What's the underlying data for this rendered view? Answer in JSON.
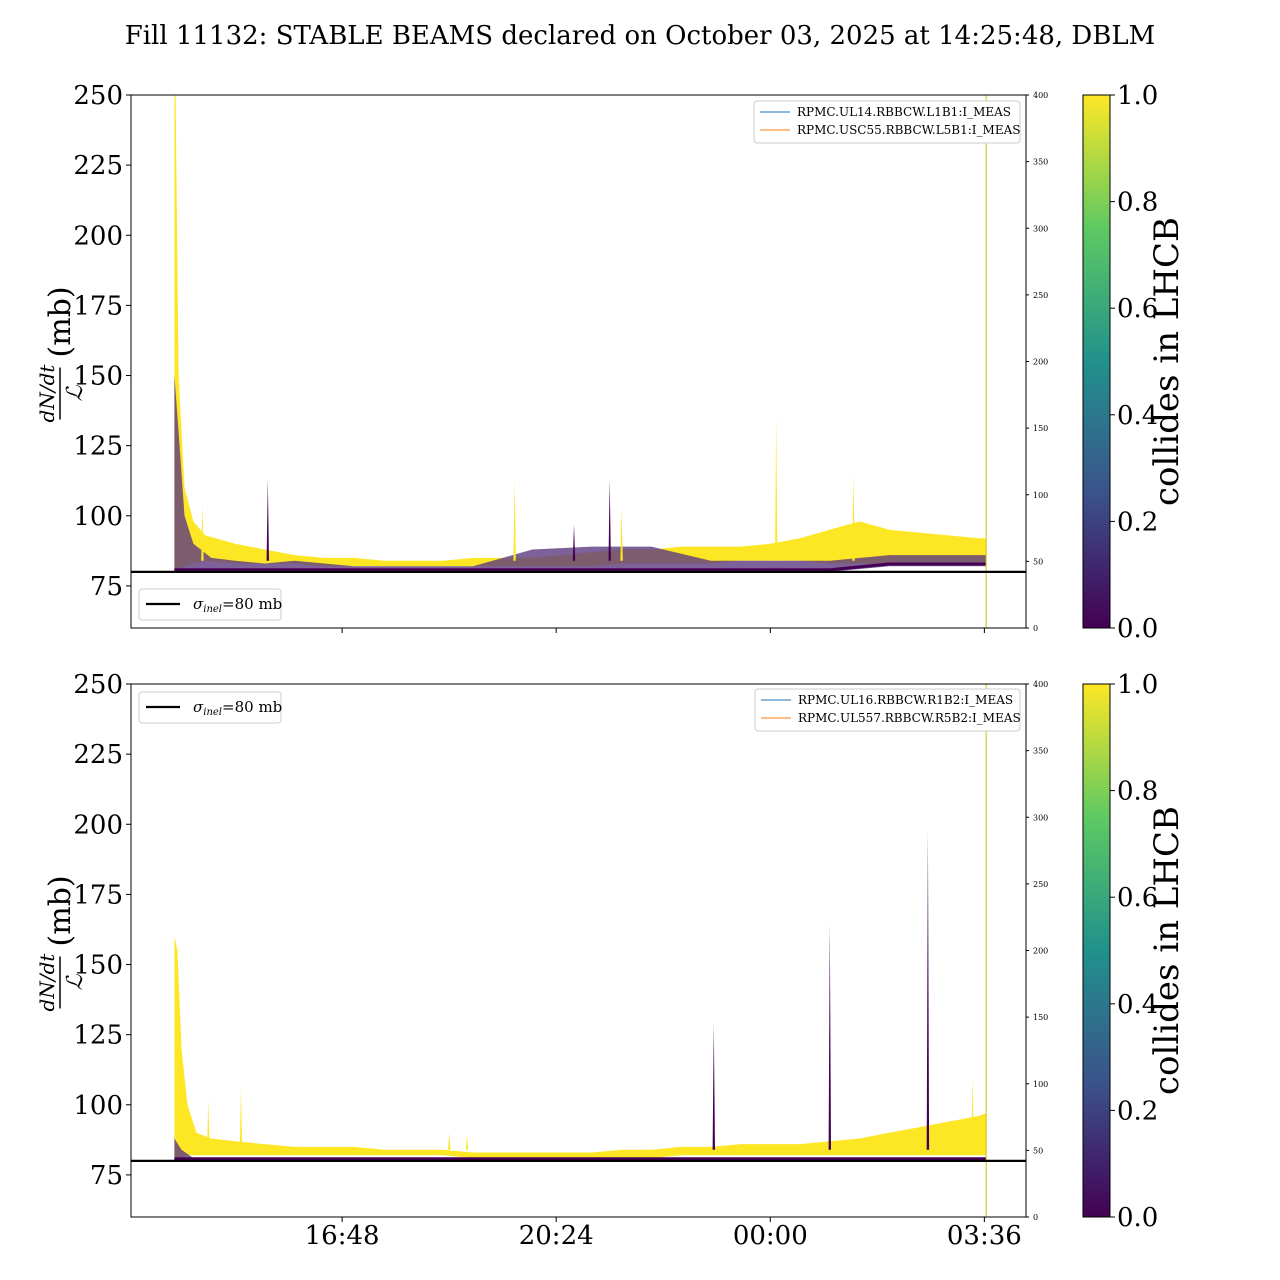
{
  "title": "Fill 11132: STABLE BEAMS declared on October 03, 2025 at 14:25:48, DBLM",
  "colors": {
    "yellow": "#fde725",
    "dark_purple": "#440154",
    "purple": "#5c3a80",
    "reference_line": "#000000",
    "blue_line": "#1f77b4",
    "orange_line": "#ff7f0e",
    "viridis": [
      "#440154",
      "#3b528b",
      "#21918c",
      "#5ec962",
      "#fde725"
    ]
  },
  "chart_data": [
    {
      "type": "area",
      "panel": "top",
      "ylabel_num": "dN/dt",
      "ylabel_den": "ℒ",
      "ylabel_unit": "(mb)",
      "ylim": [
        60,
        250
      ],
      "yticks": [
        "75",
        "100",
        "125",
        "150",
        "175",
        "200",
        "225",
        "250"
      ],
      "right_ylim": [
        0,
        400
      ],
      "right_yticks": [
        "0",
        "50",
        "100",
        "150",
        "200",
        "250",
        "300",
        "350",
        "400"
      ],
      "xlim_hours": [
        13.25,
        4.3
      ],
      "xticks": [
        "16:48",
        "20:24",
        "00:00",
        "03:36"
      ],
      "reference_line": {
        "label": "σinel=80 mb",
        "sym": "σ",
        "sub": "inel",
        "rest": "=80 mb",
        "value": 80
      },
      "legend_series": [
        {
          "name": "RPMC.UL14.RBBCW.L1B1:I_MEAS",
          "color": "#1f77b4"
        },
        {
          "name": "RPMC.USC55.RBBCW.L5B1:I_MEAS",
          "color": "#ff7f0e"
        }
      ],
      "colliding_envelope": {
        "x": [
          13.98,
          14.0,
          14.05,
          14.15,
          14.3,
          14.5,
          15.0,
          15.5,
          16.0,
          16.5,
          17.0,
          17.5,
          18.0,
          18.5,
          19.0,
          19.5,
          20.0,
          20.5,
          21.0,
          21.5,
          22.0,
          22.5,
          23.0,
          23.5,
          24.0,
          24.5,
          25.0,
          25.5,
          26.0,
          26.5,
          27.0,
          27.5,
          27.63
        ],
        "upper": [
          250,
          250,
          150,
          110,
          98,
          93,
          90,
          88,
          86,
          85,
          85,
          84,
          84,
          84,
          85,
          85,
          85,
          86,
          87,
          88,
          88,
          89,
          89,
          89,
          90,
          92,
          95,
          98,
          95,
          94,
          93,
          92,
          92
        ],
        "lower": [
          80,
          80,
          81,
          82,
          83,
          84,
          83,
          83,
          83,
          82,
          82,
          82,
          82,
          82,
          82,
          82,
          82,
          82,
          82,
          83,
          83,
          83,
          83,
          84,
          84,
          84,
          83,
          83,
          83,
          83,
          83,
          83,
          83
        ]
      },
      "non_colliding_envelope": {
        "x": [
          13.98,
          14.05,
          14.15,
          14.3,
          14.6,
          15.0,
          15.5,
          16.0,
          16.5,
          17.0,
          18.0,
          19.0,
          20.0,
          21.0,
          22.0,
          23.0,
          24.0,
          25.0,
          26.0,
          27.0,
          27.63
        ],
        "upper": [
          150,
          130,
          100,
          90,
          85,
          84,
          83,
          84,
          83,
          82,
          82,
          82,
          88,
          89,
          89,
          84,
          84,
          84,
          86,
          86,
          86
        ],
        "lower": [
          80,
          80,
          80,
          80,
          80,
          80,
          80,
          80,
          80,
          80,
          80,
          80,
          80,
          80,
          80,
          80,
          80,
          80,
          82,
          82,
          82
        ]
      },
      "spikes": [
        {
          "x": 14.45,
          "y": 104,
          "group": "colliding"
        },
        {
          "x": 15.55,
          "y": 113,
          "group": "non_colliding"
        },
        {
          "x": 19.7,
          "y": 113,
          "group": "colliding"
        },
        {
          "x": 20.7,
          "y": 97,
          "group": "non_colliding"
        },
        {
          "x": 21.3,
          "y": 113,
          "group": "non_colliding"
        },
        {
          "x": 21.5,
          "y": 103,
          "group": "colliding"
        },
        {
          "x": 24.1,
          "y": 136,
          "group": "colliding"
        },
        {
          "x": 25.4,
          "y": 115,
          "group": "colliding"
        }
      ],
      "colorbar": {
        "label": "collides in LHCB",
        "ticks": [
          "0.0",
          "0.2",
          "0.4",
          "0.6",
          "0.8",
          "1.0"
        ],
        "range": [
          0,
          1
        ]
      }
    },
    {
      "type": "area",
      "panel": "bottom",
      "ylabel_num": "dN/dt",
      "ylabel_den": "ℒ",
      "ylabel_unit": "(mb)",
      "ylim": [
        60,
        250
      ],
      "yticks": [
        "75",
        "100",
        "125",
        "150",
        "175",
        "200",
        "225",
        "250"
      ],
      "right_ylim": [
        0,
        400
      ],
      "right_yticks": [
        "0",
        "50",
        "100",
        "150",
        "200",
        "250",
        "300",
        "350",
        "400"
      ],
      "xlim_hours": [
        13.25,
        4.3
      ],
      "xticks": [
        "16:48",
        "20:24",
        "00:00",
        "03:36"
      ],
      "reference_line": {
        "label": "σinel=80 mb",
        "sym": "σ",
        "sub": "inel",
        "rest": "=80 mb",
        "value": 80
      },
      "legend_series": [
        {
          "name": "RPMC.UL16.RBBCW.R1B2:I_MEAS",
          "color": "#1f77b4"
        },
        {
          "name": "RPMC.UL557.RBBCW.R5B2:I_MEAS",
          "color": "#ff7f0e"
        }
      ],
      "colliding_envelope": {
        "x": [
          13.98,
          14.03,
          14.1,
          14.2,
          14.35,
          14.6,
          15.0,
          15.5,
          16.0,
          16.5,
          17.0,
          17.5,
          18.0,
          18.5,
          19.0,
          19.5,
          20.0,
          20.5,
          21.0,
          21.5,
          22.0,
          22.5,
          23.0,
          23.5,
          24.0,
          24.5,
          25.0,
          25.5,
          26.0,
          26.5,
          27.0,
          27.5,
          27.63
        ],
        "upper": [
          160,
          155,
          120,
          100,
          90,
          88,
          87,
          86,
          85,
          85,
          85,
          84,
          84,
          84,
          83,
          83,
          83,
          83,
          83,
          84,
          84,
          85,
          85,
          86,
          86,
          86,
          87,
          88,
          90,
          92,
          94,
          96,
          97
        ],
        "lower": [
          80,
          80,
          81,
          82,
          82,
          82,
          82,
          82,
          82,
          82,
          82,
          82,
          82,
          82,
          81,
          81,
          81,
          81,
          81,
          81,
          81,
          82,
          82,
          82,
          82,
          82,
          82,
          82,
          82,
          82,
          82,
          82,
          82
        ]
      },
      "non_colliding_envelope": {
        "x": [
          13.98,
          14.1,
          14.3,
          27.63
        ],
        "upper": [
          88,
          84,
          81,
          80
        ],
        "lower": [
          80,
          80,
          80,
          80
        ]
      },
      "spikes": [
        {
          "x": 14.55,
          "y": 102,
          "group": "colliding"
        },
        {
          "x": 15.1,
          "y": 106,
          "group": "colliding"
        },
        {
          "x": 18.6,
          "y": 90,
          "group": "colliding"
        },
        {
          "x": 18.9,
          "y": 89,
          "group": "colliding"
        },
        {
          "x": 23.05,
          "y": 129,
          "group": "non_colliding"
        },
        {
          "x": 25.0,
          "y": 165,
          "group": "non_colliding"
        },
        {
          "x": 26.65,
          "y": 198,
          "group": "non_colliding"
        },
        {
          "x": 27.4,
          "y": 110,
          "group": "colliding"
        }
      ],
      "colorbar": {
        "label": "collides in LHCB",
        "ticks": [
          "0.0",
          "0.2",
          "0.4",
          "0.6",
          "0.8",
          "1.0"
        ],
        "range": [
          0,
          1
        ]
      }
    }
  ]
}
